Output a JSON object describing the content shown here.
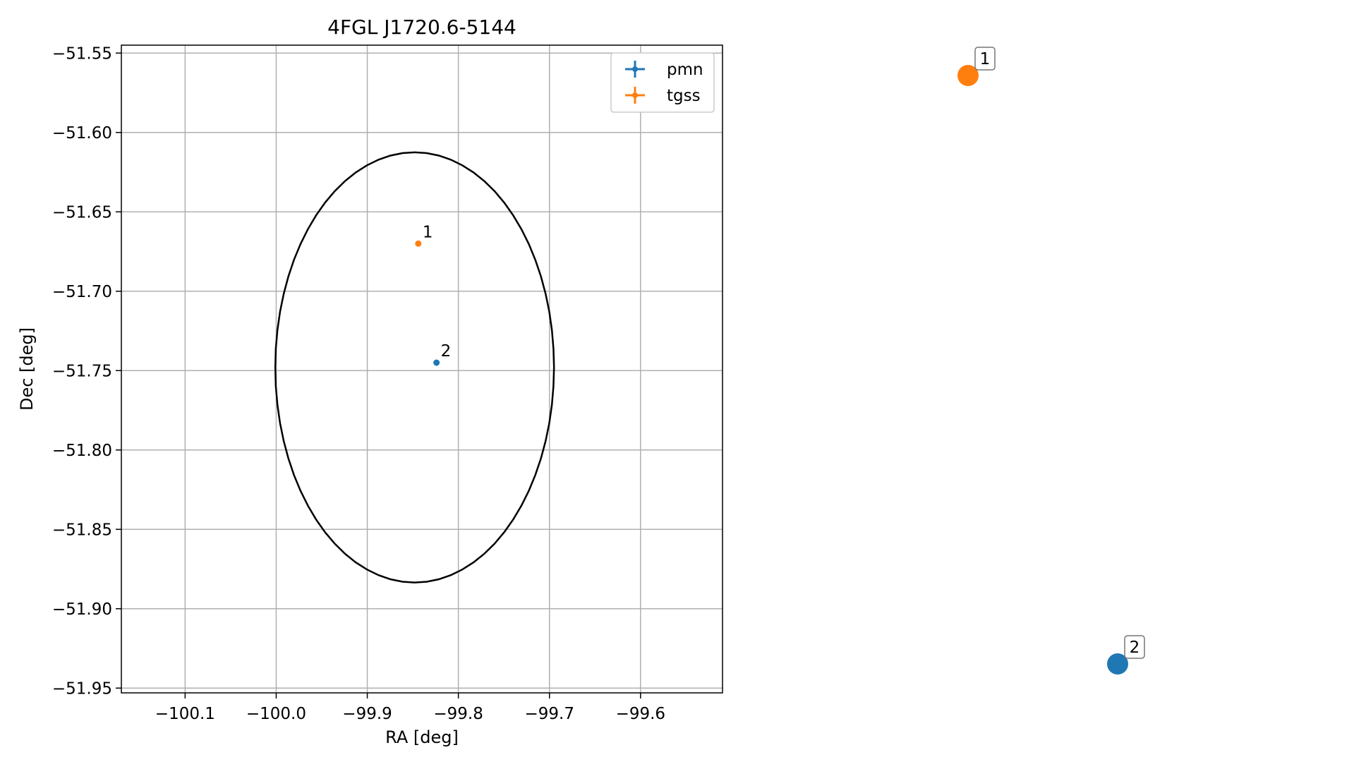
{
  "chart_data": [
    {
      "type": "scatter",
      "title": "4FGL J1720.6-5144",
      "xlabel": "RA [deg]",
      "ylabel": "Dec [deg]",
      "xlim": [
        -100.17,
        -99.51
      ],
      "ylim": [
        -51.953,
        -51.545
      ],
      "xticks": [
        -100.1,
        -100.0,
        -99.9,
        -99.8,
        -99.7,
        -99.6
      ],
      "xtick_labels": [
        "−100.1",
        "−100.0",
        "−99.9",
        "−99.8",
        "−99.7",
        "−99.6"
      ],
      "yticks": [
        -51.55,
        -51.6,
        -51.65,
        -51.7,
        -51.75,
        -51.8,
        -51.85,
        -51.9,
        -51.95
      ],
      "ytick_labels": [
        "−51.55",
        "−51.60",
        "−51.65",
        "−51.70",
        "−51.75",
        "−51.80",
        "−51.85",
        "−51.90",
        "−51.95"
      ],
      "grid": true,
      "legend": "top-right",
      "ellipse": {
        "center_ra": -99.848,
        "center_dec": -51.748,
        "semi_axis_ra": 0.153,
        "semi_axis_dec": 0.1355,
        "color": "#000000"
      },
      "series": [
        {
          "name": "pmn",
          "color": "#1f77b4",
          "points": [
            {
              "ra": -99.824,
              "dec": -51.745,
              "label": "2"
            }
          ]
        },
        {
          "name": "tgss",
          "color": "#ff7f0e",
          "points": [
            {
              "ra": -99.844,
              "dec": -51.67,
              "label": "1"
            }
          ]
        }
      ]
    },
    {
      "type": "scatter",
      "title": "",
      "points": [
        {
          "label": "1",
          "color": "#ff7f0e"
        },
        {
          "label": "2",
          "color": "#1f77b4"
        }
      ]
    }
  ]
}
